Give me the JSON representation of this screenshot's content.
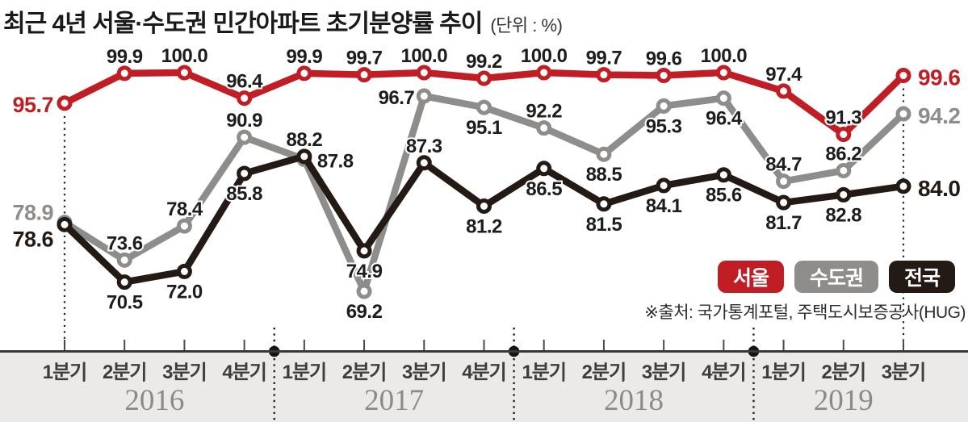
{
  "title": {
    "text": "최근 4년 서울·수도권 민간아파트 초기분양률 추이",
    "unit": "(단위 : %)"
  },
  "source": "※출처: 국가통계포털, 주택도시보증공사(HUG)",
  "legend": {
    "items": [
      {
        "label": "서울",
        "color": "#c01e24"
      },
      {
        "label": "수도권",
        "color": "#8e8d8b"
      },
      {
        "label": "전국",
        "color": "#241a15"
      }
    ]
  },
  "colors": {
    "background": "#ffffff",
    "axis_band": "#eceae8",
    "axis_line": "#383838",
    "tick": "#4a4a4a",
    "guide": "#222222",
    "year_text": "#8a8a8a",
    "quarter_text": "#3d3d3d",
    "value_text": "#1d1d1d"
  },
  "chart_data": {
    "type": "line",
    "title": "최근 4년 서울·수도권 민간아파트 초기분양률 추이",
    "unit": "%",
    "ylim": [
      65,
      102
    ],
    "grid": false,
    "legend_position": "middle-right",
    "years": [
      {
        "label": "2016",
        "quarters": [
          "1분기",
          "2분기",
          "3분기",
          "4분기"
        ]
      },
      {
        "label": "2017",
        "quarters": [
          "1분기",
          "2분기",
          "3분기",
          "4분기"
        ]
      },
      {
        "label": "2018",
        "quarters": [
          "1분기",
          "2분기",
          "3분기",
          "4분기"
        ]
      },
      {
        "label": "2019",
        "quarters": [
          "1분기",
          "2분기",
          "3분기"
        ]
      }
    ],
    "series": [
      {
        "name": "서울",
        "color": "#c01e24",
        "values": [
          95.7,
          99.9,
          100.0,
          96.4,
          99.9,
          99.7,
          100.0,
          99.2,
          100.0,
          99.7,
          99.6,
          100.0,
          97.4,
          91.3,
          99.6
        ],
        "label_positions": [
          "left",
          "above",
          "above",
          "above",
          "above",
          "above",
          "above",
          "above",
          "above",
          "above",
          "above",
          "above",
          "above",
          "above",
          "right"
        ]
      },
      {
        "name": "수도권",
        "color": "#8e8d8b",
        "values": [
          78.9,
          73.6,
          78.4,
          90.9,
          87.8,
          69.2,
          96.7,
          95.1,
          92.2,
          88.5,
          95.3,
          96.4,
          84.7,
          86.2,
          94.2
        ],
        "label_positions": [
          "left-up",
          "above",
          "above",
          "above",
          "right-small",
          "below",
          "left-small",
          "below",
          "above",
          "below",
          "below",
          "below",
          "above",
          "above",
          "right"
        ]
      },
      {
        "name": "전국",
        "color": "#241a15",
        "values": [
          78.6,
          70.5,
          72.0,
          85.8,
          88.2,
          74.9,
          87.3,
          81.2,
          86.5,
          81.5,
          84.1,
          85.6,
          81.7,
          82.8,
          84.0
        ],
        "label_positions": [
          "left-down",
          "below",
          "below",
          "below",
          "above",
          "below",
          "above",
          "below",
          "below",
          "below",
          "below",
          "below",
          "below",
          "below",
          "right"
        ]
      }
    ],
    "draw_order": [
      "수도권",
      "전국",
      "서울"
    ]
  }
}
